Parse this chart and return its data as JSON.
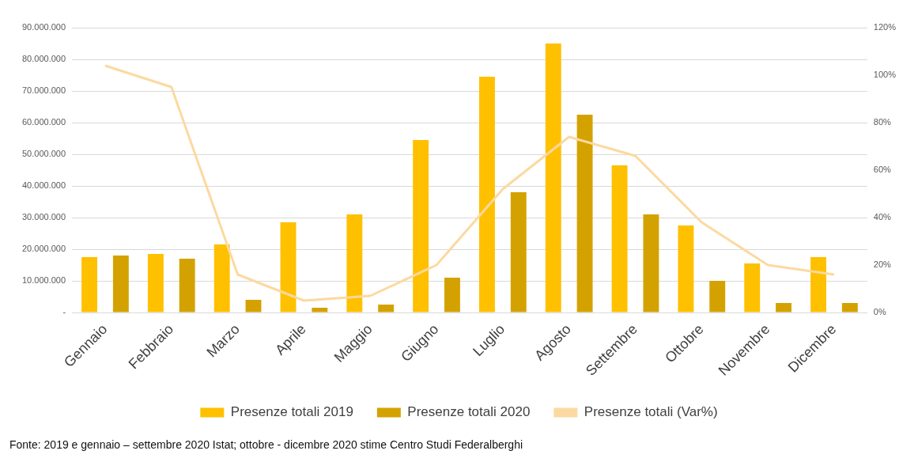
{
  "chart_data": {
    "type": "bar",
    "categories": [
      "Gennaio",
      "Febbraio",
      "Marzo",
      "Aprile",
      "Maggio",
      "Giugno",
      "Luglio",
      "Agosto",
      "Settembre",
      "Ottobre",
      "Novembre",
      "Dicembre"
    ],
    "series": [
      {
        "name": "Presenze totali 2019",
        "color": "#ffc000",
        "values": [
          17500000,
          18500000,
          21500000,
          28500000,
          31000000,
          54500000,
          74500000,
          85000000,
          46500000,
          27500000,
          15500000,
          17500000
        ]
      },
      {
        "name": "Presenze totali 2020",
        "color": "#d4a200",
        "values": [
          18000000,
          17000000,
          4000000,
          1500000,
          2500000,
          11000000,
          38000000,
          62500000,
          31000000,
          10000000,
          3000000,
          3000000
        ]
      },
      {
        "name": "Presenze totali (Var%)",
        "type": "line",
        "axis": "y2",
        "color": "#fcd9a0",
        "values": [
          104,
          95,
          16,
          5,
          7,
          20,
          52,
          74,
          66,
          38,
          20,
          16
        ]
      }
    ],
    "ylim": [
      0,
      90000000
    ],
    "yticks": [
      {
        "value": 0,
        "label": "-"
      },
      {
        "value": 10000000,
        "label": "10.000.000"
      },
      {
        "value": 20000000,
        "label": "20.000.000"
      },
      {
        "value": 30000000,
        "label": "30.000.000"
      },
      {
        "value": 40000000,
        "label": "40.000.000"
      },
      {
        "value": 50000000,
        "label": "50.000.000"
      },
      {
        "value": 60000000,
        "label": "60.000.000"
      },
      {
        "value": 70000000,
        "label": "70.000.000"
      },
      {
        "value": 80000000,
        "label": "80.000.000"
      },
      {
        "value": 90000000,
        "label": "90.000.000"
      }
    ],
    "y2lim": [
      0,
      120
    ],
    "y2ticks": [
      {
        "value": 0,
        "label": "0%"
      },
      {
        "value": 20,
        "label": "20%"
      },
      {
        "value": 40,
        "label": "40%"
      },
      {
        "value": 60,
        "label": "60%"
      },
      {
        "value": 80,
        "label": "80%"
      },
      {
        "value": 100,
        "label": "100%"
      },
      {
        "value": 120,
        "label": "120%"
      }
    ],
    "grid": "y",
    "legend": "bottom",
    "marker": "none",
    "annotations": [
      "Fonte: 2019  e gennaio – settembre 2020 Istat; ottobre - dicembre 2020 stime Centro Studi Federalberghi"
    ]
  }
}
